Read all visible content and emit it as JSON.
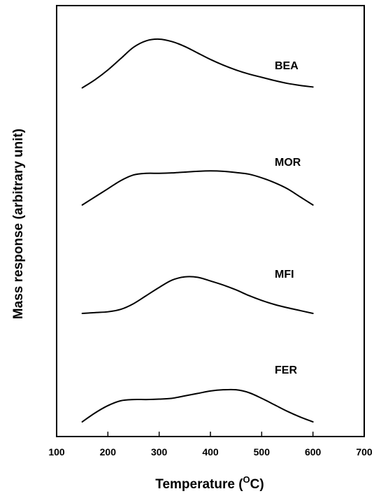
{
  "chart_data": {
    "type": "line",
    "xlabel": "Temperature (",
    "xlabel_unit_sup": "O",
    "xlabel_unit_end": "C)",
    "ylabel": "Mass response (arbitrary unit)",
    "xlim": [
      100,
      700
    ],
    "x_ticks": [
      100,
      200,
      300,
      400,
      500,
      600,
      700
    ],
    "y_ticks": [],
    "grid": false,
    "legend": "none",
    "series": [
      {
        "name": "BEA",
        "x": [
          150,
          175,
          200,
          225,
          250,
          275,
          300,
          325,
          350,
          375,
          400,
          425,
          450,
          475,
          500,
          525,
          550,
          575,
          600
        ],
        "y": [
          0.18,
          0.38,
          0.62,
          0.9,
          1.18,
          1.34,
          1.38,
          1.32,
          1.2,
          1.04,
          0.88,
          0.74,
          0.62,
          0.52,
          0.44,
          0.36,
          0.29,
          0.24,
          0.2
        ]
      },
      {
        "name": "MOR",
        "x": [
          150,
          175,
          200,
          225,
          250,
          275,
          300,
          325,
          350,
          375,
          400,
          425,
          450,
          475,
          500,
          525,
          550,
          575,
          600
        ],
        "y": [
          0.0,
          0.2,
          0.4,
          0.6,
          0.74,
          0.78,
          0.78,
          0.79,
          0.81,
          0.83,
          0.84,
          0.83,
          0.8,
          0.76,
          0.67,
          0.55,
          0.4,
          0.2,
          0.0
        ]
      },
      {
        "name": "MFI",
        "x": [
          150,
          175,
          200,
          225,
          250,
          275,
          300,
          325,
          350,
          375,
          400,
          425,
          450,
          475,
          500,
          525,
          550,
          575,
          600
        ],
        "y": [
          0.0,
          0.02,
          0.04,
          0.1,
          0.24,
          0.44,
          0.64,
          0.82,
          0.9,
          0.89,
          0.8,
          0.7,
          0.58,
          0.44,
          0.32,
          0.22,
          0.14,
          0.07,
          0.0
        ]
      },
      {
        "name": "FER",
        "x": [
          150,
          175,
          200,
          225,
          250,
          275,
          300,
          325,
          350,
          375,
          400,
          425,
          450,
          475,
          500,
          525,
          550,
          575,
          600
        ],
        "y": [
          0.0,
          0.22,
          0.4,
          0.52,
          0.55,
          0.55,
          0.56,
          0.58,
          0.64,
          0.7,
          0.76,
          0.79,
          0.79,
          0.72,
          0.58,
          0.42,
          0.26,
          0.12,
          0.0
        ]
      }
    ]
  }
}
